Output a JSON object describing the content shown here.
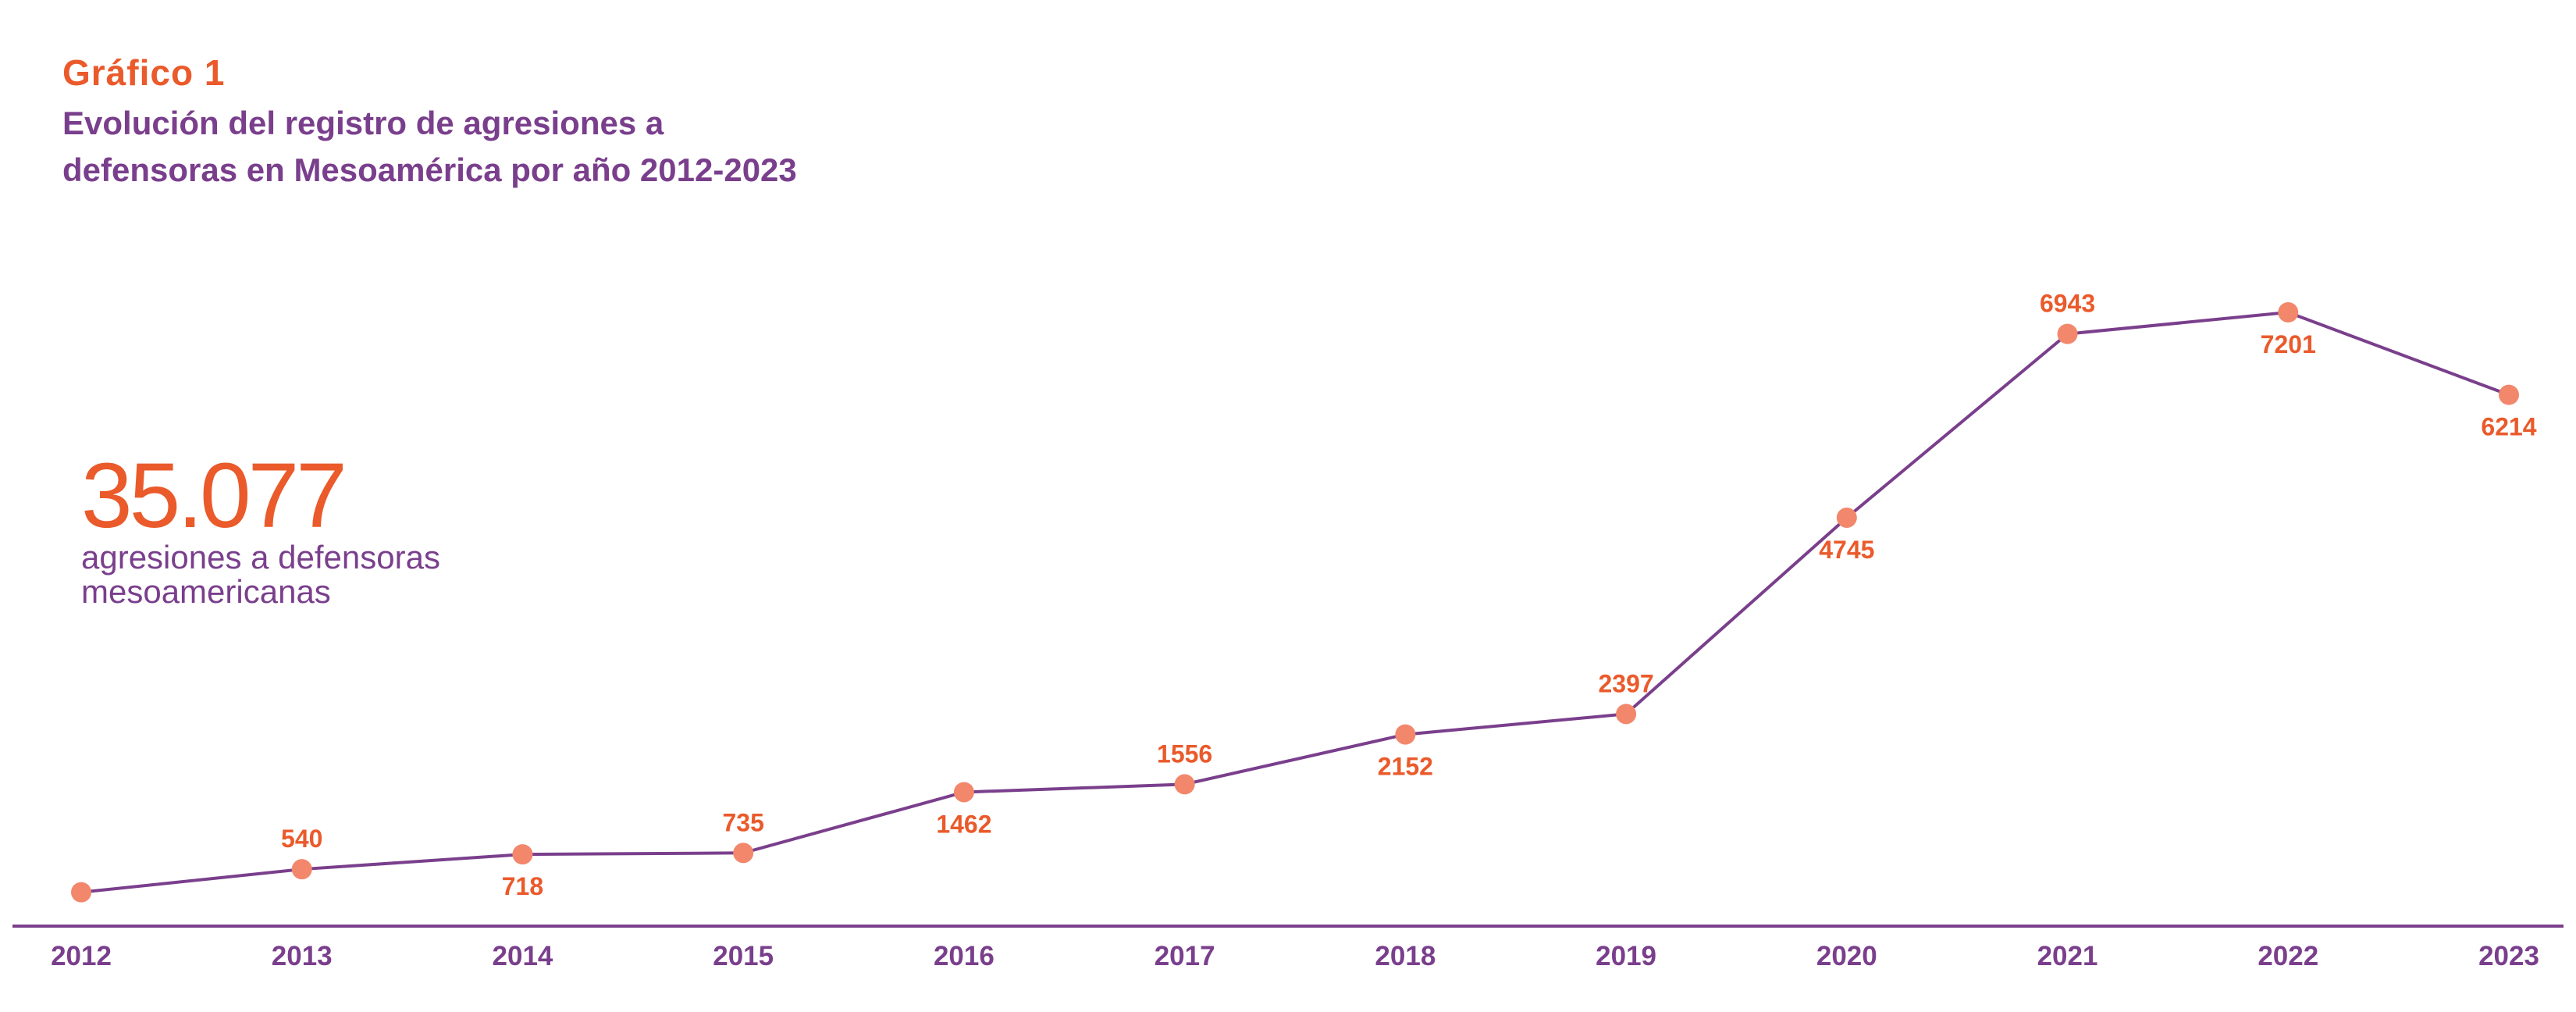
{
  "header": {
    "kicker": "Gráfico 1",
    "title_line1": "Evolución del registro de agresiones a",
    "title_line2": "defensoras en Mesoamérica por año 2012-2023"
  },
  "summary": {
    "total": "35.077",
    "caption_line1": "agresiones a defensoras",
    "caption_line2": "mesoamericanas"
  },
  "colors": {
    "accent": "#ea5a2b",
    "line": "#7a3f8c",
    "marker": "#f2876c"
  },
  "chart_data": {
    "type": "line",
    "title": "Evolución del registro de agresiones a defensoras en Mesoamérica por año 2012-2023",
    "xlabel": "",
    "ylabel": "",
    "categories": [
      "2012",
      "2013",
      "2014",
      "2015",
      "2016",
      "2017",
      "2018",
      "2019",
      "2020",
      "2021",
      "2022",
      "2023"
    ],
    "values": [
      null,
      540,
      718,
      735,
      1462,
      1556,
      2152,
      2397,
      4745,
      6943,
      7201,
      6214
    ],
    "estimated_values": [
      265,
      540,
      718,
      735,
      1462,
      1556,
      2152,
      2397,
      4745,
      6943,
      7201,
      6214
    ],
    "labels": [
      "",
      "540",
      "718",
      "735",
      "1462",
      "1556",
      "2152",
      "2397",
      "4745",
      "6943",
      "7201",
      "6214"
    ],
    "label_positions": [
      "above",
      "above",
      "below",
      "above",
      "below",
      "above",
      "below",
      "above",
      "below",
      "above",
      "below",
      "below"
    ],
    "ylim": [
      0,
      7500
    ],
    "grid": false,
    "legend": "none"
  }
}
